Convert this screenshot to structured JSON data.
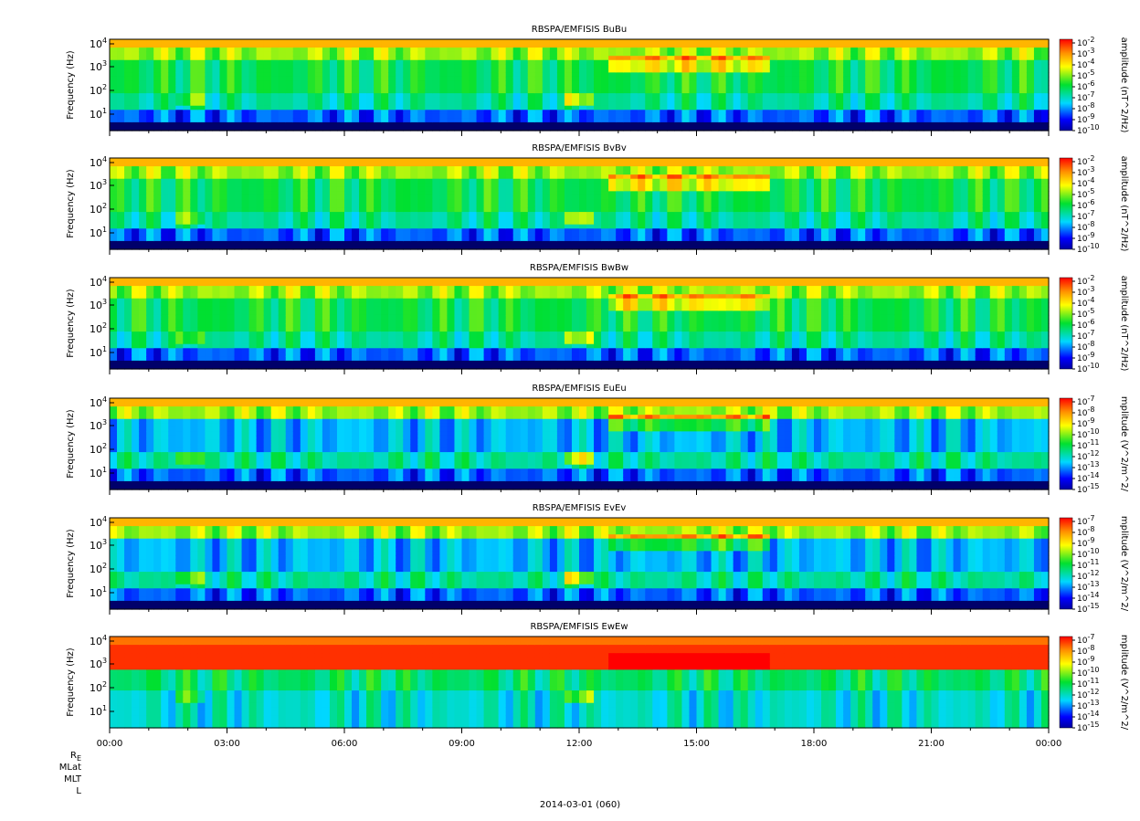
{
  "chart_data": {
    "type": "heatmap",
    "figure_date": "2014-03-01 (060)",
    "x_ticks": [
      "00:00",
      "03:00",
      "06:00",
      "09:00",
      "12:00",
      "15:00",
      "18:00",
      "21:00",
      "00:00"
    ],
    "ephemeris_labels": [
      "R",
      "MLat",
      "MLT",
      "L"
    ],
    "ephemeris_R_subscript": "E",
    "y_label": "Frequency (Hz)",
    "y_scale": "log",
    "y_ticks": [
      {
        "base": "10",
        "exp": "1"
      },
      {
        "base": "10",
        "exp": "2"
      },
      {
        "base": "10",
        "exp": "3"
      },
      {
        "base": "10",
        "exp": "4"
      }
    ],
    "colormap": "rainbow (blue → cyan → green → yellow → red)",
    "panels": [
      {
        "title": "RBSPA/EMFISIS  BuBu",
        "colorbar_label": "amplitude (nT^2/Hz)",
        "cb_exps": [
          "-2",
          "-3",
          "-4",
          "-5",
          "-6",
          "-7",
          "-8",
          "-9",
          "-10"
        ],
        "kind": "B"
      },
      {
        "title": "RBSPA/EMFISIS  BvBv",
        "colorbar_label": "amplitude (nT^2/Hz)",
        "cb_exps": [
          "-2",
          "-3",
          "-4",
          "-5",
          "-6",
          "-7",
          "-8",
          "-9",
          "-10"
        ],
        "kind": "B"
      },
      {
        "title": "RBSPA/EMFISIS  BwBw",
        "colorbar_label": "amplitude (nT^2/Hz)",
        "cb_exps": [
          "-2",
          "-3",
          "-4",
          "-5",
          "-6",
          "-7",
          "-8",
          "-9",
          "-10"
        ],
        "kind": "B"
      },
      {
        "title": "RBSPA/EMFISIS  EuEu",
        "colorbar_label": "mplitude (V^2/m^2/",
        "cb_exps": [
          "-7",
          "-8",
          "-9",
          "-10",
          "-11",
          "-12",
          "-13",
          "-14",
          "-15"
        ],
        "kind": "E"
      },
      {
        "title": "RBSPA/EMFISIS  EvEv",
        "colorbar_label": "mplitude (V^2/m^2/",
        "cb_exps": [
          "-7",
          "-8",
          "-9",
          "-10",
          "-11",
          "-12",
          "-13",
          "-14",
          "-15"
        ],
        "kind": "E"
      },
      {
        "title": "RBSPA/EMFISIS  EwEw",
        "colorbar_label": "mplitude (V^2/m^2/",
        "cb_exps": [
          "-7",
          "-8",
          "-9",
          "-10",
          "-11",
          "-12",
          "-13",
          "-14",
          "-15"
        ],
        "kind": "Ew"
      }
    ]
  }
}
